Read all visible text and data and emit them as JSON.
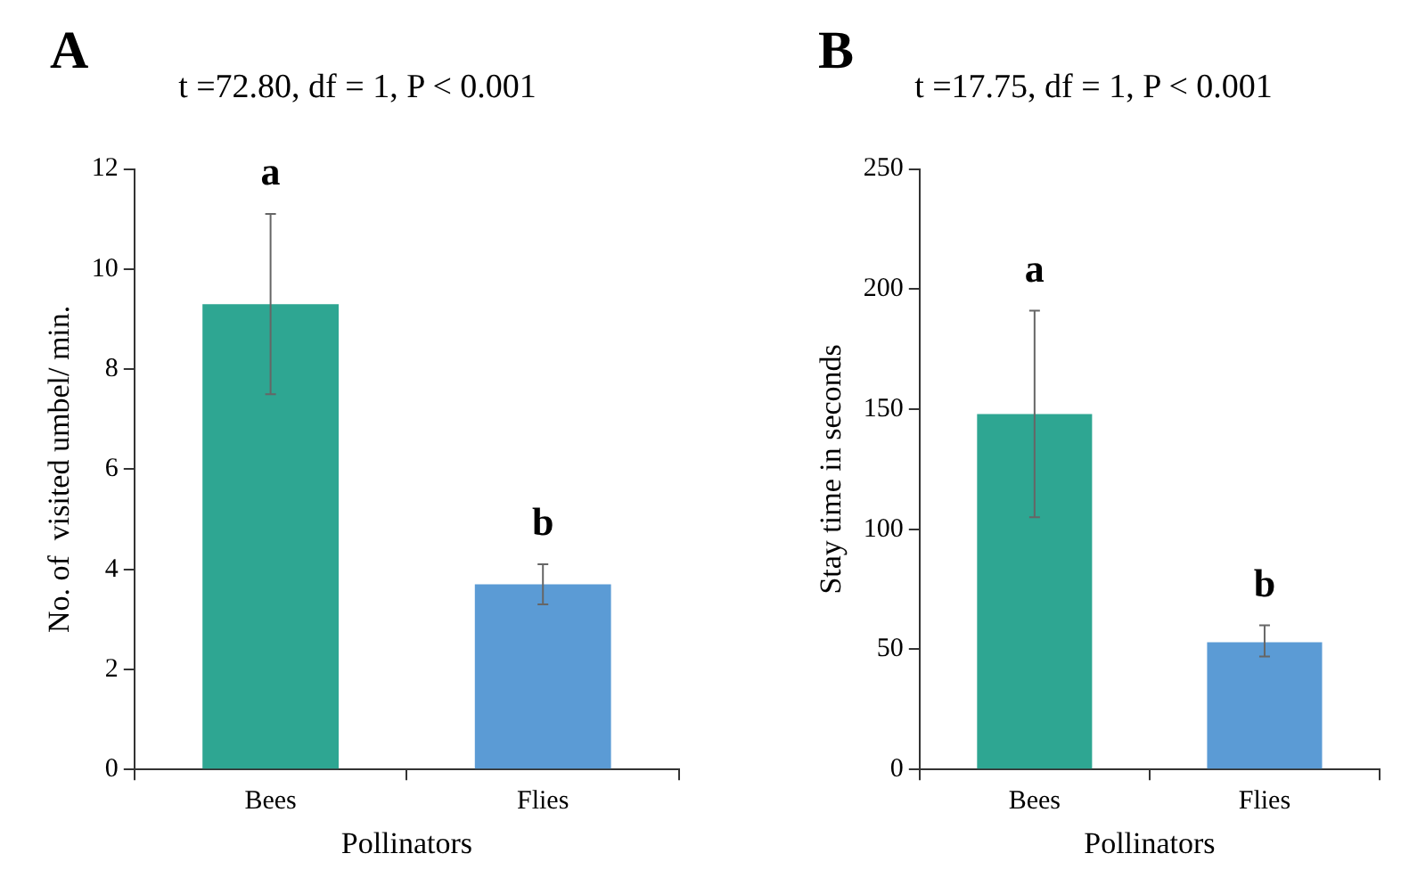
{
  "chart_data": [
    {
      "type": "bar",
      "title": "t =72.80, df = 1, P < 0.001",
      "xlabel": "Pollinators",
      "ylabel": "No. of  visited umbel/ min.",
      "categories": [
        "Bees",
        "Flies"
      ],
      "values": [
        9.3,
        3.7
      ],
      "colors": [
        "#2ea692",
        "#5b9bd5"
      ],
      "errors": [
        [
          7.5,
          11.1
        ],
        [
          3.3,
          4.1
        ]
      ],
      "ylim": [
        0,
        12
      ],
      "yticks": [
        0,
        2,
        4,
        6,
        8,
        10,
        12
      ],
      "grid": false,
      "legend": false,
      "annotations": [
        "A",
        "a",
        "b"
      ]
    },
    {
      "type": "bar",
      "title": "t =17.75, df = 1, P < 0.001",
      "xlabel": "Pollinators",
      "ylabel": "Stay time in seconds",
      "categories": [
        "Bees",
        "Flies"
      ],
      "values": [
        148,
        53
      ],
      "colors": [
        "#2ea692",
        "#5b9bd5"
      ],
      "errors": [
        [
          105,
          191
        ],
        [
          47,
          60
        ]
      ],
      "ylim": [
        0,
        250
      ],
      "yticks": [
        0,
        50,
        100,
        150,
        200,
        250
      ],
      "grid": false,
      "legend": false,
      "annotations": [
        "B",
        "a",
        "b"
      ]
    }
  ]
}
